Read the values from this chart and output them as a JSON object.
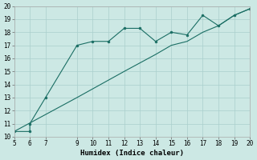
{
  "xlabel": "Humidex (Indice chaleur)",
  "series1_x": [
    5,
    6,
    6,
    7,
    9,
    10,
    11,
    12,
    13,
    14,
    15,
    16,
    17,
    18,
    19,
    20
  ],
  "series1_y": [
    10.4,
    10.4,
    11.0,
    13.0,
    17.0,
    17.3,
    17.3,
    18.3,
    18.3,
    17.3,
    18.0,
    17.8,
    19.3,
    18.5,
    19.3,
    19.8
  ],
  "series2_x": [
    5,
    9,
    12,
    14,
    15,
    16,
    17,
    18,
    19,
    20
  ],
  "series2_y": [
    10.4,
    13.0,
    15.0,
    16.3,
    17.0,
    17.3,
    18.0,
    18.5,
    19.3,
    19.8
  ],
  "line_color": "#1a6e64",
  "marker_color": "#1a6e64",
  "bg_color": "#cce8e4",
  "grid_color": "#aacfcc",
  "xlim": [
    5,
    20
  ],
  "ylim": [
    10,
    20
  ],
  "xticks": [
    5,
    6,
    7,
    9,
    10,
    11,
    12,
    13,
    14,
    15,
    16,
    17,
    18,
    19,
    20
  ],
  "yticks": [
    10,
    11,
    12,
    13,
    14,
    15,
    16,
    17,
    18,
    19,
    20
  ],
  "tick_fontsize": 5.5,
  "label_fontsize": 6.5
}
